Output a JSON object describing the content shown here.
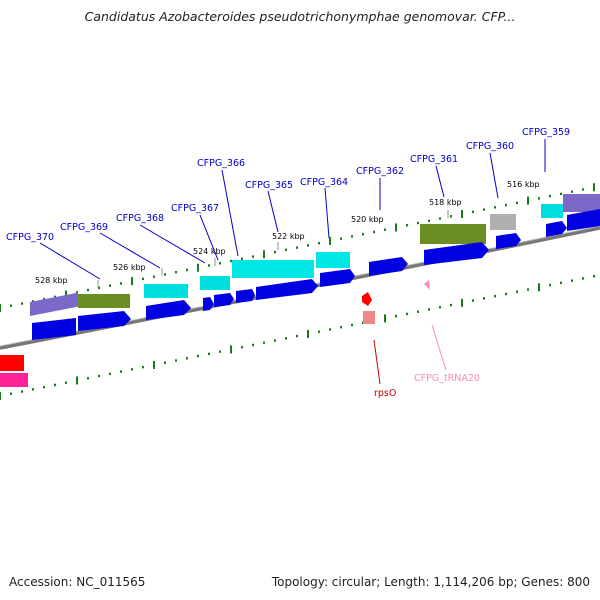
{
  "title": "Candidatus Azobacteroides pseudotrichonymphae genomovar. CFP...",
  "footer": {
    "accession": "Accession: NC_011565",
    "summary": "Topology: circular; Length: 1,114,206 bp; Genes: 800"
  },
  "colors": {
    "cds": "#0000e0",
    "cog_purple": "#7b68c8",
    "cog_olive": "#6b8e23",
    "cog_cyan": "#00dede",
    "cog_gray": "#b0b0b0",
    "rrna_red": "#ff0000",
    "trna_pink": "#ff88bb",
    "magenta": "#ff2299",
    "tick": "#1a7a1a",
    "backbone": "#808080",
    "label_blue": "#0000cc"
  },
  "kbp_labels": [
    "528 kbp",
    "526 kbp",
    "524 kbp",
    "522 kbp",
    "520 kbp",
    "518 kbp",
    "516 kbp"
  ],
  "gene_labels": [
    "CFPG_370",
    "CFPG_369",
    "CFPG_368",
    "CFPG_367",
    "CFPG_366",
    "CFPG_365",
    "CFPG_364",
    "CFPG_362",
    "CFPG_361",
    "CFPG_360",
    "CFPG_359"
  ],
  "feature_labels": [
    "rpsO",
    "CFPG_tRNA20"
  ]
}
